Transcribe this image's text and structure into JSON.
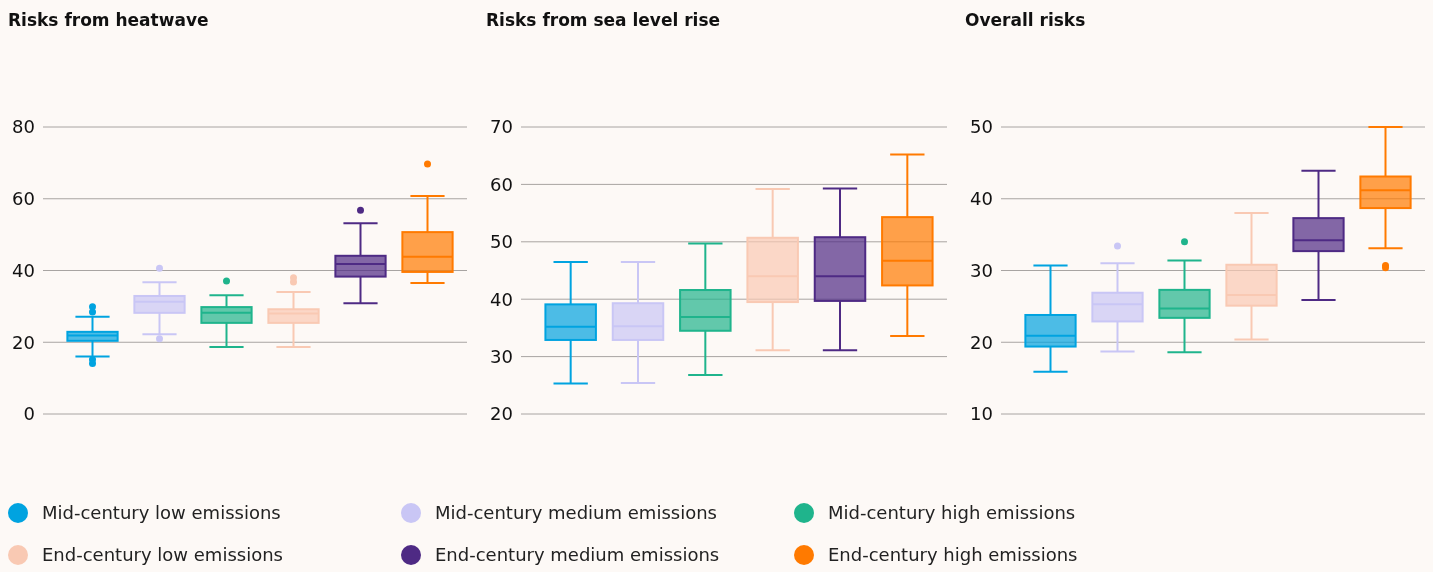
{
  "chart_data": [
    {
      "type": "box",
      "title": "Risks from heatwave",
      "categories": [
        null
      ],
      "ylim": [
        0,
        80
      ],
      "yticks": [
        0,
        20,
        40,
        60,
        80
      ],
      "grid": "y",
      "legend": "bottom",
      "series": [
        {
          "name": "Mid-century low emissions",
          "color": "#00a3e0",
          "boxes": [
            {
              "low": 16.0,
              "q1": 20.4,
              "median": 21.9,
              "q3": 22.9,
              "high": 27.1,
              "outliers": [
                29.9,
                28.4,
                15.2,
                14.1
              ]
            }
          ]
        },
        {
          "name": "Mid-century medium emissions",
          "color": "#c9c6f5",
          "boxes": [
            {
              "low": 22.2,
              "q1": 28.2,
              "median": 31.3,
              "q3": 32.9,
              "high": 36.7,
              "outliers": [
                40.6,
                21.0
              ]
            }
          ]
        },
        {
          "name": "Mid-century high emissions",
          "color": "#1fb48c",
          "boxes": [
            {
              "low": 18.7,
              "q1": 25.4,
              "median": 28.2,
              "q3": 29.8,
              "high": 33.1,
              "outliers": [
                37.1
              ]
            }
          ]
        },
        {
          "name": "End-century low emissions",
          "color": "#f9c9b3",
          "boxes": [
            {
              "low": 18.7,
              "q1": 25.4,
              "median": 28.0,
              "q3": 29.2,
              "high": 34.0,
              "outliers": [
                38.0,
                36.8
              ]
            }
          ]
        },
        {
          "name": "End-century medium emissions",
          "color": "#4e2a84",
          "boxes": [
            {
              "low": 30.9,
              "q1": 38.3,
              "median": 41.8,
              "q3": 44.1,
              "high": 53.2,
              "outliers": [
                56.8
              ]
            }
          ]
        },
        {
          "name": "End-century high emissions",
          "color": "#ff7a00",
          "boxes": [
            {
              "low": 36.5,
              "q1": 39.6,
              "median": 43.8,
              "q3": 50.7,
              "high": 60.8,
              "outliers": [
                69.7
              ]
            }
          ]
        }
      ]
    },
    {
      "type": "box",
      "title": "Risks from sea level rise",
      "categories": [
        null
      ],
      "ylim": [
        20,
        70
      ],
      "yticks": [
        20,
        30,
        40,
        50,
        60,
        70
      ],
      "grid": "y",
      "series": [
        {
          "color": "#00a3e0",
          "boxes": [
            {
              "low": 25.3,
              "q1": 32.9,
              "median": 35.2,
              "q3": 39.1,
              "high": 46.5
            }
          ]
        },
        {
          "color": "#c9c6f5",
          "boxes": [
            {
              "low": 25.4,
              "q1": 32.9,
              "median": 35.3,
              "q3": 39.3,
              "high": 46.5
            }
          ]
        },
        {
          "color": "#1fb48c",
          "boxes": [
            {
              "low": 26.8,
              "q1": 34.5,
              "median": 36.9,
              "q3": 41.6,
              "high": 49.7
            }
          ]
        },
        {
          "color": "#f9c9b3",
          "boxes": [
            {
              "low": 31.1,
              "q1": 39.5,
              "median": 44.0,
              "q3": 50.7,
              "high": 59.2
            }
          ]
        },
        {
          "color": "#4e2a84",
          "boxes": [
            {
              "low": 31.1,
              "q1": 39.7,
              "median": 44.0,
              "q3": 50.8,
              "high": 59.3
            }
          ]
        },
        {
          "color": "#ff7a00",
          "boxes": [
            {
              "low": 33.6,
              "q1": 42.4,
              "median": 46.7,
              "q3": 54.3,
              "high": 65.2
            }
          ]
        }
      ]
    },
    {
      "type": "box",
      "title": "Overall risks",
      "categories": [
        null
      ],
      "ylim": [
        10,
        50
      ],
      "yticks": [
        10,
        20,
        30,
        40,
        50
      ],
      "grid": "y",
      "series": [
        {
          "color": "#00a3e0",
          "boxes": [
            {
              "low": 15.9,
              "q1": 19.4,
              "median": 20.9,
              "q3": 23.8,
              "high": 30.7
            }
          ]
        },
        {
          "color": "#c9c6f5",
          "boxes": [
            {
              "low": 18.7,
              "q1": 22.9,
              "median": 25.3,
              "q3": 26.9,
              "high": 31.0,
              "outliers": [
                33.4
              ]
            }
          ]
        },
        {
          "color": "#1fb48c",
          "boxes": [
            {
              "low": 18.6,
              "q1": 23.4,
              "median": 24.7,
              "q3": 27.3,
              "high": 31.4,
              "outliers": [
                34.0
              ]
            }
          ]
        },
        {
          "color": "#f9c9b3",
          "boxes": [
            {
              "low": 20.4,
              "q1": 25.1,
              "median": 26.6,
              "q3": 30.8,
              "high": 38.0
            }
          ]
        },
        {
          "color": "#4e2a84",
          "boxes": [
            {
              "low": 25.9,
              "q1": 32.7,
              "median": 34.2,
              "q3": 37.3,
              "high": 43.9
            }
          ]
        },
        {
          "color": "#ff7a00",
          "boxes": [
            {
              "low": 33.1,
              "q1": 38.7,
              "median": 41.2,
              "q3": 43.1,
              "high": 50.0,
              "outliers": [
                30.7,
                30.4
              ]
            }
          ]
        }
      ]
    }
  ]
}
